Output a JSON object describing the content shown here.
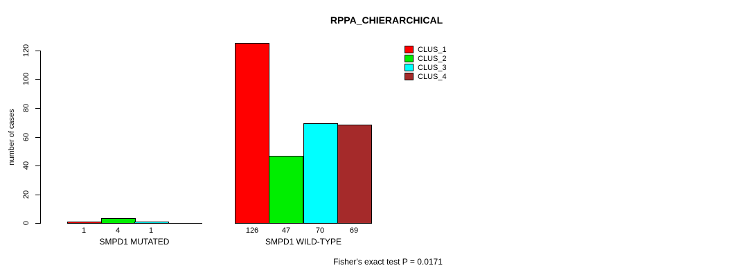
{
  "title": "RPPA_CHIERARCHICAL",
  "footer": "Fisher's exact test P = 0.0171",
  "chart_data": {
    "type": "bar",
    "title": "RPPA_CHIERARCHICAL",
    "xlabel": "",
    "ylabel": "number of cases",
    "ylim": [
      0,
      120
    ],
    "yticks": [
      0,
      20,
      40,
      60,
      80,
      100,
      120
    ],
    "grid": false,
    "legend_position": "top-right",
    "legend": [
      {
        "name": "CLUS_1",
        "color": "#ff0000"
      },
      {
        "name": "CLUS_2",
        "color": "#00ee00"
      },
      {
        "name": "CLUS_3",
        "color": "#00ffff"
      },
      {
        "name": "CLUS_4",
        "color": "#a52a2a"
      }
    ],
    "categories": [
      "SMPD1 MUTATED",
      "SMPD1 WILD-TYPE"
    ],
    "groups": [
      {
        "label": "SMPD1 MUTATED",
        "values": [
          1,
          4,
          1,
          0
        ],
        "bar_labels": [
          "1",
          "4",
          "1",
          ""
        ]
      },
      {
        "label": "SMPD1 WILD-TYPE",
        "values": [
          126,
          47,
          70,
          69
        ],
        "bar_labels": [
          "126",
          "47",
          "70",
          "69"
        ]
      }
    ],
    "annotation": "Fisher's exact test P = 0.0171"
  }
}
